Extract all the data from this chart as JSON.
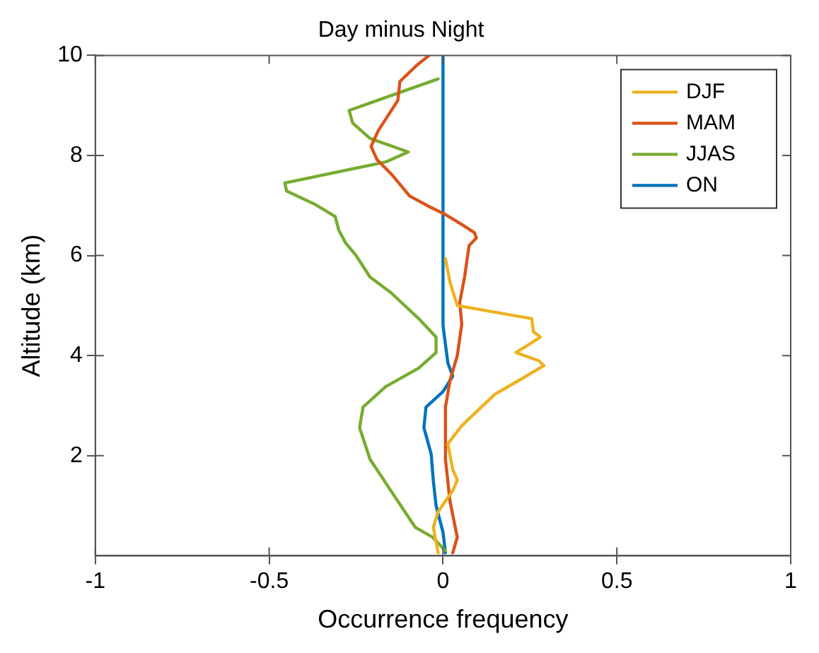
{
  "chart_data": {
    "type": "line",
    "title": "Day minus Night",
    "xlabel": "Occurrence frequency",
    "ylabel": "Altitude (km)",
    "xlim": [
      -1,
      1
    ],
    "xticks": [
      -1,
      -0.5,
      0,
      0.5,
      1
    ],
    "ylim": [
      0,
      10
    ],
    "yticks": [
      2,
      4,
      6,
      8,
      10
    ],
    "grid": false,
    "legend": "top right",
    "series": [
      {
        "name": "DJF",
        "color": "#edb120",
        "x": [
          -0.014,
          -0.028,
          -0.014,
          0.028,
          0.041,
          0.028,
          0.014,
          0.054,
          0.11,
          0.15,
          0.227,
          0.29,
          0.275,
          0.21,
          0.28,
          0.26,
          0.255,
          0.041,
          0.02,
          0.007
        ],
        "values": [
          0.06,
          0.57,
          0.88,
          1.3,
          1.51,
          1.72,
          2.24,
          2.6,
          2.97,
          3.23,
          3.54,
          3.8,
          3.9,
          4.06,
          4.37,
          4.48,
          4.74,
          5.0,
          5.47,
          5.94
        ]
      },
      {
        "name": "MAM",
        "color": "#d95319",
        "x": [
          0.028,
          0.041,
          0.02,
          0.007,
          0.007,
          0.02,
          0.041,
          0.054,
          0.048,
          0.062,
          0.075,
          0.096,
          0.09,
          0.054,
          0.007,
          -0.04,
          -0.096,
          -0.145,
          -0.19,
          -0.207,
          -0.186,
          -0.13,
          -0.124,
          -0.076,
          -0.04
        ],
        "values": [
          0.06,
          0.37,
          1.09,
          1.93,
          2.97,
          3.5,
          4.0,
          4.63,
          5.06,
          5.57,
          6.2,
          6.35,
          6.46,
          6.62,
          6.82,
          6.98,
          7.19,
          7.6,
          7.92,
          8.18,
          8.5,
          9.1,
          9.48,
          9.8,
          10
        ]
      },
      {
        "name": "JJAS",
        "color": "#77ac30",
        "x": [
          0.007,
          -0.03,
          -0.08,
          -0.15,
          -0.21,
          -0.24,
          -0.23,
          -0.165,
          -0.07,
          -0.02,
          -0.02,
          -0.07,
          -0.15,
          -0.21,
          -0.25,
          -0.28,
          -0.3,
          -0.31,
          -0.37,
          -0.45,
          -0.455,
          -0.165,
          -0.1,
          -0.21,
          -0.26,
          -0.27,
          -0.014
        ],
        "values": [
          0.1,
          0.37,
          0.57,
          1.3,
          1.93,
          2.56,
          2.97,
          3.38,
          3.75,
          4.06,
          4.37,
          4.74,
          5.26,
          5.57,
          6.0,
          6.25,
          6.51,
          6.78,
          7.03,
          7.29,
          7.45,
          7.87,
          8.07,
          8.34,
          8.65,
          8.9,
          9.53
        ]
      },
      {
        "name": "ON",
        "color": "#0072bd",
        "x": [
          0.007,
          0,
          -0.02,
          -0.028,
          -0.034,
          -0.055,
          -0.049,
          0,
          0.028,
          0.014,
          0,
          0
        ],
        "values": [
          0.06,
          0.47,
          1.0,
          1.51,
          2.03,
          2.56,
          2.97,
          3.28,
          3.59,
          3.85,
          4.6,
          10
        ]
      }
    ]
  }
}
